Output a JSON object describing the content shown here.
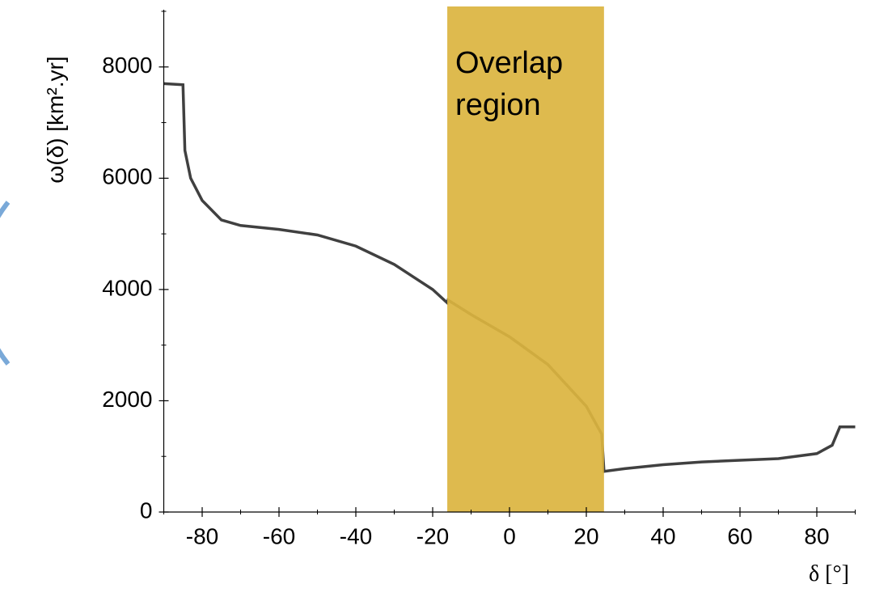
{
  "chart_data": {
    "type": "line",
    "xlabel": "δ [°]",
    "ylabel": "ω(δ) [km².yr]",
    "xlim": [
      -90,
      90
    ],
    "xticks": [
      -80,
      -60,
      -40,
      -20,
      0,
      20,
      40,
      60,
      80
    ],
    "x_minor_ticks": [
      -90,
      -70,
      -50,
      -30,
      -10,
      10,
      30,
      50,
      70,
      90
    ],
    "ylim": [
      0,
      9000
    ],
    "yticks": [
      0,
      2000,
      4000,
      6000,
      8000
    ],
    "y_minor_ticks": [
      1000,
      3000,
      5000,
      7000,
      9000
    ],
    "series": [
      {
        "color": "#404040",
        "x": [
          -90,
          -85,
          -84.5,
          -83,
          -80,
          -75,
          -70,
          -60,
          -50,
          -40,
          -30,
          -20,
          -16.2,
          -16,
          -10,
          0,
          10,
          20,
          24,
          24.6,
          30,
          40,
          50,
          60,
          70,
          80,
          84,
          86,
          90
        ],
        "values": [
          7700,
          7680,
          6500,
          6000,
          5600,
          5250,
          5150,
          5080,
          4980,
          4780,
          4450,
          4000,
          3760,
          3810,
          3550,
          3150,
          2650,
          1900,
          1400,
          730,
          780,
          850,
          900,
          930,
          960,
          1050,
          1200,
          1530,
          1530
        ]
      }
    ],
    "shaded_region": {
      "x": [
        -16.2,
        24.6
      ],
      "color": "#dbb43f",
      "label_lines": [
        "Overlap",
        "region"
      ]
    }
  }
}
